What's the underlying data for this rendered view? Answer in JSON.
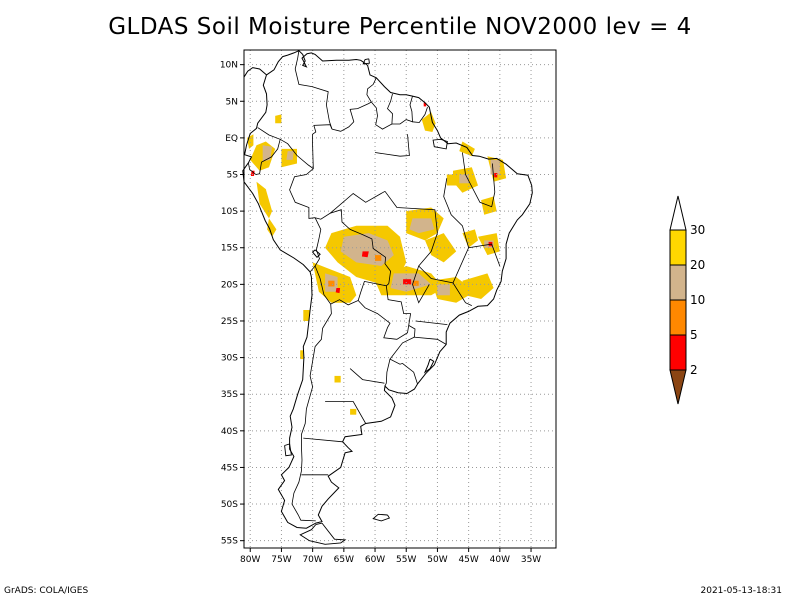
{
  "title": "GLDAS Soil Moisture Percentile NOV2000 lev = 4",
  "footer": {
    "left": "GrADS: COLA/IGES",
    "right": "2021-05-13-18:31"
  },
  "map": {
    "lon_range": [
      -81,
      -31
    ],
    "lat_range": [
      -56,
      12
    ],
    "lon_ticks": [
      {
        "value": -80,
        "label": "80W"
      },
      {
        "value": -75,
        "label": "75W"
      },
      {
        "value": -70,
        "label": "70W"
      },
      {
        "value": -65,
        "label": "65W"
      },
      {
        "value": -60,
        "label": "60W"
      },
      {
        "value": -55,
        "label": "55W"
      },
      {
        "value": -50,
        "label": "50W"
      },
      {
        "value": -45,
        "label": "45W"
      },
      {
        "value": -40,
        "label": "40W"
      },
      {
        "value": -35,
        "label": "35W"
      }
    ],
    "lat_ticks": [
      {
        "value": 10,
        "label": "10N"
      },
      {
        "value": 5,
        "label": "5N"
      },
      {
        "value": 0,
        "label": "EQ"
      },
      {
        "value": -5,
        "label": "5S"
      },
      {
        "value": -10,
        "label": "10S"
      },
      {
        "value": -15,
        "label": "15S"
      },
      {
        "value": -20,
        "label": "20S"
      },
      {
        "value": -25,
        "label": "25S"
      },
      {
        "value": -30,
        "label": "30S"
      },
      {
        "value": -35,
        "label": "35S"
      },
      {
        "value": -40,
        "label": "40S"
      },
      {
        "value": -45,
        "label": "45S"
      },
      {
        "value": -50,
        "label": "50S"
      },
      {
        "value": -55,
        "label": "55S"
      }
    ],
    "grid": true
  },
  "legend": {
    "colors": [
      "#8b4513",
      "#ff0000",
      "#ff8800",
      "#d2b48c",
      "#ffd700",
      "#ffffff"
    ],
    "labels": [
      "2",
      "5",
      "10",
      "20",
      "30"
    ]
  },
  "colors": {
    "p20_30": "#f5c800",
    "p10_20": "#d2b48c",
    "p5_10": "#ff8c00",
    "p2_5": "#ff0000"
  }
}
